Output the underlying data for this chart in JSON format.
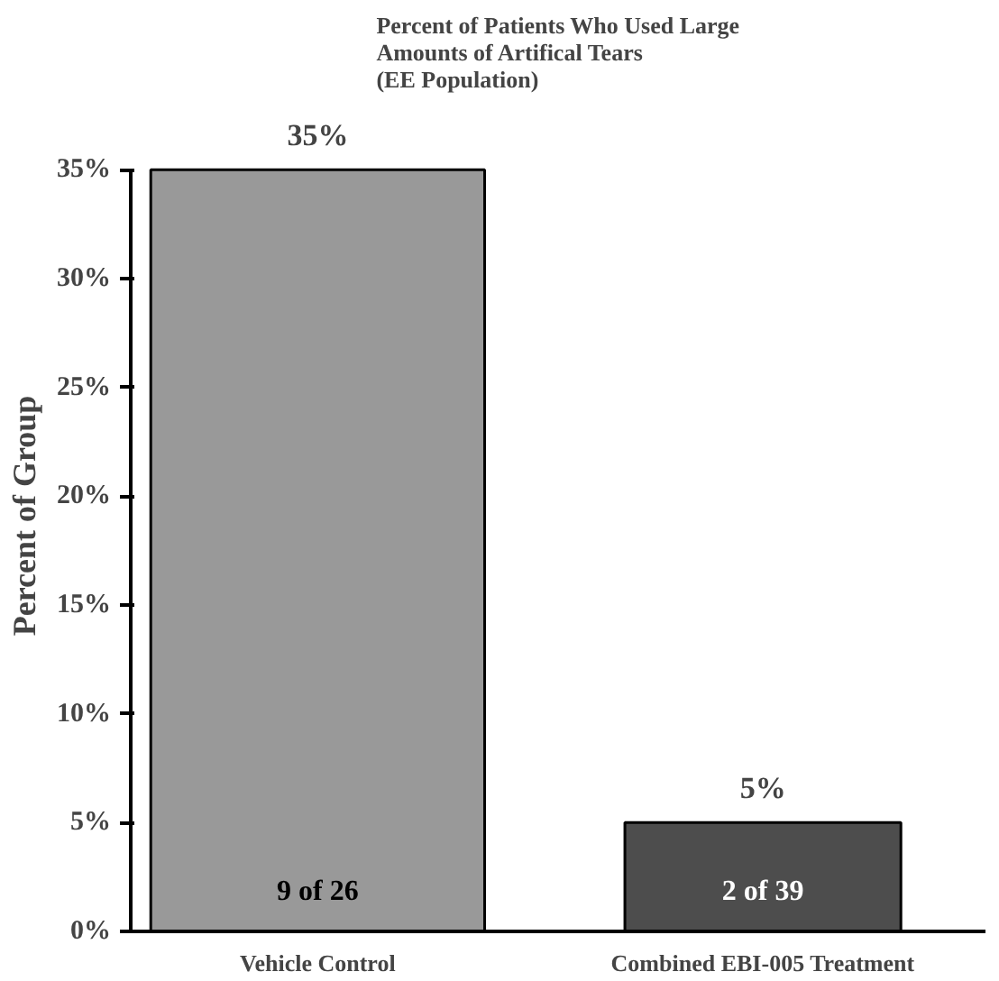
{
  "chart_data": {
    "type": "bar",
    "title": "Percent of Patients Who Used Large\nAmounts of Artifical Tears\n(EE Population)",
    "ylabel": "Percent of Group",
    "categories": [
      "Vehicle Control",
      "Combined EBI-005 Treatment"
    ],
    "values": [
      35,
      5
    ],
    "colors": [
      "#999999",
      "#4d4d4d"
    ],
    "value_labels": [
      "35%",
      "5%"
    ],
    "ylim": [
      0,
      35
    ],
    "yticks": [
      {
        "value": 0,
        "label": "0%"
      },
      {
        "value": 5,
        "label": "5%"
      },
      {
        "value": 10,
        "label": "10%"
      },
      {
        "value": 15,
        "label": "15%"
      },
      {
        "value": 20,
        "label": "20%"
      },
      {
        "value": 25,
        "label": "25%"
      },
      {
        "value": 30,
        "label": "30%"
      },
      {
        "value": 35,
        "label": "35%"
      }
    ],
    "annotations": [
      "9 of 26",
      "2 of 39"
    ],
    "grid": false
  }
}
